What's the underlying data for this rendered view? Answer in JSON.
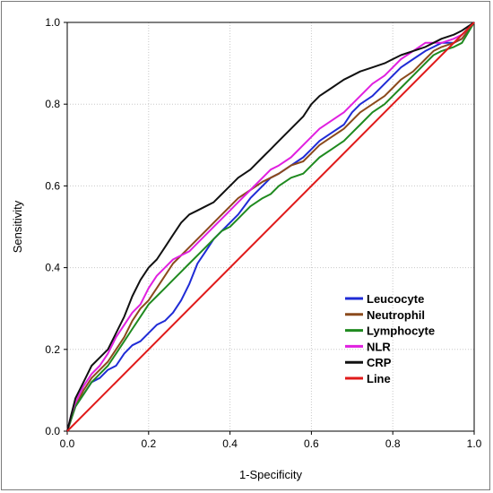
{
  "chart_data": {
    "type": "line",
    "title": "",
    "xlabel": "1-Specificity",
    "ylabel": "Sensitivity",
    "xlim": [
      0,
      1
    ],
    "ylim": [
      0,
      1
    ],
    "grid": true,
    "legend_position": "bottom-right",
    "x_ticks": [
      "0.0",
      "0.2",
      "0.4",
      "0.6",
      "0.8",
      "1.0"
    ],
    "y_ticks": [
      "0.0",
      "0.2",
      "0.4",
      "0.6",
      "0.8",
      "1.0"
    ],
    "series": [
      {
        "name": "Leucocyte",
        "color": "#1f2bd6",
        "x": [
          0,
          0.01,
          0.02,
          0.04,
          0.06,
          0.08,
          0.1,
          0.12,
          0.14,
          0.16,
          0.18,
          0.2,
          0.22,
          0.24,
          0.26,
          0.28,
          0.3,
          0.32,
          0.34,
          0.36,
          0.38,
          0.4,
          0.42,
          0.45,
          0.48,
          0.5,
          0.52,
          0.55,
          0.58,
          0.6,
          0.62,
          0.65,
          0.68,
          0.7,
          0.72,
          0.75,
          0.78,
          0.8,
          0.82,
          0.85,
          0.88,
          0.9,
          0.92,
          0.95,
          0.97,
          1.0
        ],
        "y": [
          0,
          0.03,
          0.06,
          0.09,
          0.12,
          0.13,
          0.15,
          0.16,
          0.19,
          0.21,
          0.22,
          0.24,
          0.26,
          0.27,
          0.29,
          0.32,
          0.36,
          0.41,
          0.44,
          0.47,
          0.49,
          0.51,
          0.53,
          0.57,
          0.6,
          0.62,
          0.63,
          0.65,
          0.67,
          0.69,
          0.71,
          0.73,
          0.75,
          0.78,
          0.8,
          0.82,
          0.85,
          0.87,
          0.89,
          0.91,
          0.93,
          0.94,
          0.95,
          0.95,
          0.96,
          1.0
        ]
      },
      {
        "name": "Neutrophil",
        "color": "#8b4a1c",
        "x": [
          0,
          0.01,
          0.02,
          0.04,
          0.06,
          0.08,
          0.1,
          0.12,
          0.14,
          0.16,
          0.18,
          0.2,
          0.22,
          0.24,
          0.26,
          0.28,
          0.3,
          0.32,
          0.34,
          0.36,
          0.38,
          0.4,
          0.42,
          0.45,
          0.48,
          0.5,
          0.52,
          0.55,
          0.58,
          0.6,
          0.62,
          0.65,
          0.68,
          0.7,
          0.72,
          0.75,
          0.78,
          0.8,
          0.82,
          0.85,
          0.88,
          0.9,
          0.92,
          0.95,
          0.97,
          1.0
        ],
        "y": [
          0,
          0.03,
          0.06,
          0.1,
          0.13,
          0.15,
          0.17,
          0.2,
          0.23,
          0.27,
          0.3,
          0.32,
          0.35,
          0.38,
          0.41,
          0.43,
          0.45,
          0.47,
          0.49,
          0.51,
          0.53,
          0.55,
          0.57,
          0.59,
          0.61,
          0.62,
          0.63,
          0.65,
          0.66,
          0.68,
          0.7,
          0.72,
          0.74,
          0.76,
          0.78,
          0.8,
          0.82,
          0.84,
          0.86,
          0.88,
          0.91,
          0.93,
          0.94,
          0.95,
          0.96,
          1.0
        ]
      },
      {
        "name": "Lymphocyte",
        "color": "#1f8a1f",
        "x": [
          0,
          0.01,
          0.02,
          0.04,
          0.06,
          0.08,
          0.1,
          0.12,
          0.14,
          0.16,
          0.18,
          0.2,
          0.22,
          0.24,
          0.26,
          0.28,
          0.3,
          0.32,
          0.34,
          0.36,
          0.38,
          0.4,
          0.42,
          0.45,
          0.48,
          0.5,
          0.52,
          0.55,
          0.58,
          0.6,
          0.62,
          0.65,
          0.68,
          0.7,
          0.72,
          0.75,
          0.78,
          0.8,
          0.82,
          0.85,
          0.88,
          0.9,
          0.92,
          0.95,
          0.97,
          1.0
        ],
        "y": [
          0,
          0.03,
          0.06,
          0.09,
          0.12,
          0.14,
          0.16,
          0.19,
          0.22,
          0.25,
          0.28,
          0.31,
          0.33,
          0.35,
          0.37,
          0.39,
          0.41,
          0.43,
          0.45,
          0.47,
          0.49,
          0.5,
          0.52,
          0.55,
          0.57,
          0.58,
          0.6,
          0.62,
          0.63,
          0.65,
          0.67,
          0.69,
          0.71,
          0.73,
          0.75,
          0.78,
          0.8,
          0.82,
          0.84,
          0.87,
          0.9,
          0.92,
          0.93,
          0.94,
          0.95,
          1.0
        ]
      },
      {
        "name": "NLR",
        "color": "#e020e0",
        "x": [
          0,
          0.01,
          0.02,
          0.04,
          0.06,
          0.08,
          0.1,
          0.12,
          0.14,
          0.16,
          0.18,
          0.2,
          0.22,
          0.24,
          0.26,
          0.28,
          0.3,
          0.32,
          0.34,
          0.36,
          0.38,
          0.4,
          0.42,
          0.45,
          0.48,
          0.5,
          0.52,
          0.55,
          0.58,
          0.6,
          0.62,
          0.65,
          0.68,
          0.7,
          0.72,
          0.75,
          0.78,
          0.8,
          0.82,
          0.85,
          0.88,
          0.9,
          0.92,
          0.95,
          0.97,
          1.0
        ],
        "y": [
          0,
          0.04,
          0.07,
          0.11,
          0.14,
          0.16,
          0.19,
          0.23,
          0.26,
          0.29,
          0.31,
          0.35,
          0.38,
          0.4,
          0.42,
          0.43,
          0.44,
          0.46,
          0.48,
          0.5,
          0.52,
          0.54,
          0.56,
          0.59,
          0.62,
          0.64,
          0.65,
          0.67,
          0.7,
          0.72,
          0.74,
          0.76,
          0.78,
          0.8,
          0.82,
          0.85,
          0.87,
          0.89,
          0.91,
          0.93,
          0.95,
          0.95,
          0.95,
          0.96,
          0.97,
          1.0
        ]
      },
      {
        "name": "CRP",
        "color": "#111111",
        "x": [
          0,
          0.01,
          0.02,
          0.04,
          0.06,
          0.08,
          0.1,
          0.12,
          0.14,
          0.16,
          0.18,
          0.2,
          0.22,
          0.24,
          0.26,
          0.28,
          0.3,
          0.32,
          0.34,
          0.36,
          0.38,
          0.4,
          0.42,
          0.45,
          0.48,
          0.5,
          0.52,
          0.55,
          0.58,
          0.6,
          0.62,
          0.65,
          0.68,
          0.7,
          0.72,
          0.75,
          0.78,
          0.8,
          0.82,
          0.85,
          0.88,
          0.9,
          0.92,
          0.95,
          0.97,
          1.0
        ],
        "y": [
          0,
          0.04,
          0.08,
          0.12,
          0.16,
          0.18,
          0.2,
          0.24,
          0.28,
          0.33,
          0.37,
          0.4,
          0.42,
          0.45,
          0.48,
          0.51,
          0.53,
          0.54,
          0.55,
          0.56,
          0.58,
          0.6,
          0.62,
          0.64,
          0.67,
          0.69,
          0.71,
          0.74,
          0.77,
          0.8,
          0.82,
          0.84,
          0.86,
          0.87,
          0.88,
          0.89,
          0.9,
          0.91,
          0.92,
          0.93,
          0.94,
          0.95,
          0.96,
          0.97,
          0.98,
          1.0
        ]
      },
      {
        "name": "Line",
        "color": "#e01a1a",
        "x": [
          0,
          1
        ],
        "y": [
          0,
          1
        ]
      }
    ]
  }
}
